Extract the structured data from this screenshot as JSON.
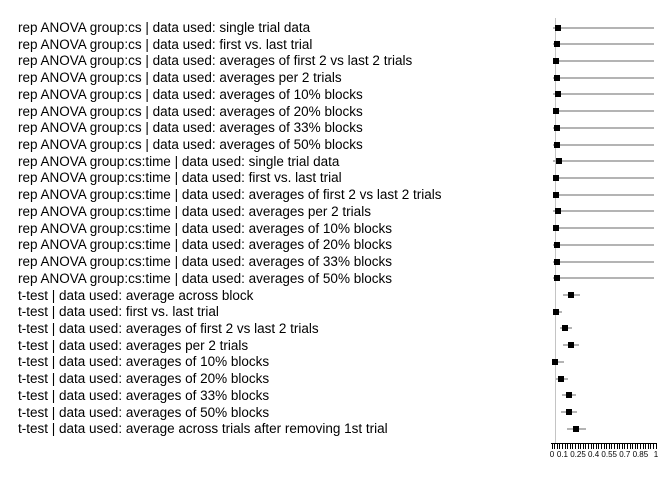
{
  "chart_data": {
    "type": "scatter",
    "variant": "forest-dot-plot-with-error-bars",
    "title": "",
    "xlabel": "",
    "ylabel": "",
    "xlim": [
      0,
      1
    ],
    "grid": false,
    "legend": false,
    "x_tick_values": [
      0,
      0.1,
      0.25,
      0.4,
      0.55,
      0.7,
      0.85,
      1
    ],
    "x_tick_labels": [
      "0",
      "0.1",
      "0.25",
      "0.4",
      "0.55",
      "0.7",
      "0.85",
      "1"
    ],
    "x_minor_tick_step": 0.025,
    "reference_line_x": 0.03,
    "rows": [
      {
        "label": "rep ANOVA group:cs | data used: single trial data",
        "point": 0.055,
        "lo": 0.005,
        "hi": 0.98
      },
      {
        "label": "rep ANOVA group:cs | data used: first vs. last trial",
        "point": 0.045,
        "lo": 0.005,
        "hi": 0.98
      },
      {
        "label": "rep ANOVA group:cs | data used: averages of first 2 vs last 2 trials",
        "point": 0.04,
        "lo": 0.005,
        "hi": 0.98
      },
      {
        "label": "rep ANOVA group:cs | data used: averages per 2 trials",
        "point": 0.05,
        "lo": 0.005,
        "hi": 0.98
      },
      {
        "label": "rep ANOVA group:cs | data used: averages of 10% blocks",
        "point": 0.055,
        "lo": 0.005,
        "hi": 0.98
      },
      {
        "label": "rep ANOVA group:cs | data used: averages of 20% blocks",
        "point": 0.04,
        "lo": 0.005,
        "hi": 0.98
      },
      {
        "label": "rep ANOVA group:cs | data used: averages of 33% blocks",
        "point": 0.05,
        "lo": 0.005,
        "hi": 0.98
      },
      {
        "label": "rep ANOVA group:cs | data used: averages of 50% blocks",
        "point": 0.045,
        "lo": 0.005,
        "hi": 0.98
      },
      {
        "label": "rep ANOVA group:cs:time | data used: single trial data",
        "point": 0.065,
        "lo": 0.005,
        "hi": 0.98
      },
      {
        "label": "rep ANOVA group:cs:time | data used: first vs. last trial",
        "point": 0.04,
        "lo": 0.005,
        "hi": 0.98
      },
      {
        "label": "rep ANOVA group:cs:time | data used: averages of first 2 vs last 2 trials",
        "point": 0.038,
        "lo": 0.005,
        "hi": 0.98
      },
      {
        "label": "rep ANOVA group:cs:time | data used: averages per 2 trials",
        "point": 0.053,
        "lo": 0.005,
        "hi": 0.98
      },
      {
        "label": "rep ANOVA group:cs:time | data used: averages of 10% blocks",
        "point": 0.038,
        "lo": 0.005,
        "hi": 0.98
      },
      {
        "label": "rep ANOVA group:cs:time | data used: averages of 20% blocks",
        "point": 0.05,
        "lo": 0.005,
        "hi": 0.98
      },
      {
        "label": "rep ANOVA group:cs:time | data used: averages of 33% blocks",
        "point": 0.05,
        "lo": 0.005,
        "hi": 0.98
      },
      {
        "label": "rep ANOVA group:cs:time | data used: averages of 50% blocks",
        "point": 0.05,
        "lo": 0.005,
        "hi": 0.98
      },
      {
        "label": "t-test | data used: average across block",
        "point": 0.185,
        "lo": 0.105,
        "hi": 0.27
      },
      {
        "label": "t-test | data used: first vs. last trial",
        "point": 0.042,
        "lo": 0.01,
        "hi": 0.095
      },
      {
        "label": "t-test | data used: averages of first 2 vs last 2 trials",
        "point": 0.128,
        "lo": 0.075,
        "hi": 0.19
      },
      {
        "label": "t-test | data used: averages per 2 trials",
        "point": 0.18,
        "lo": 0.105,
        "hi": 0.26
      },
      {
        "label": "t-test | data used: averages of 10% blocks",
        "point": 0.032,
        "lo": 0.005,
        "hi": 0.115
      },
      {
        "label": "t-test | data used: averages of 20% blocks",
        "point": 0.09,
        "lo": 0.04,
        "hi": 0.155
      },
      {
        "label": "t-test | data used: averages of 33% blocks",
        "point": 0.16,
        "lo": 0.095,
        "hi": 0.235
      },
      {
        "label": "t-test | data used: averages of 50% blocks",
        "point": 0.16,
        "lo": 0.09,
        "hi": 0.245
      },
      {
        "label": "t-test | data used: average across trials after removing 1st trial",
        "point": 0.235,
        "lo": 0.14,
        "hi": 0.33
      }
    ]
  },
  "colors": {
    "background": "#ffffff",
    "point": "#000000",
    "error_bar": "#b4b4b4",
    "reference_line": "#c4c4c4",
    "axis": "#000000",
    "text": "#000000"
  }
}
